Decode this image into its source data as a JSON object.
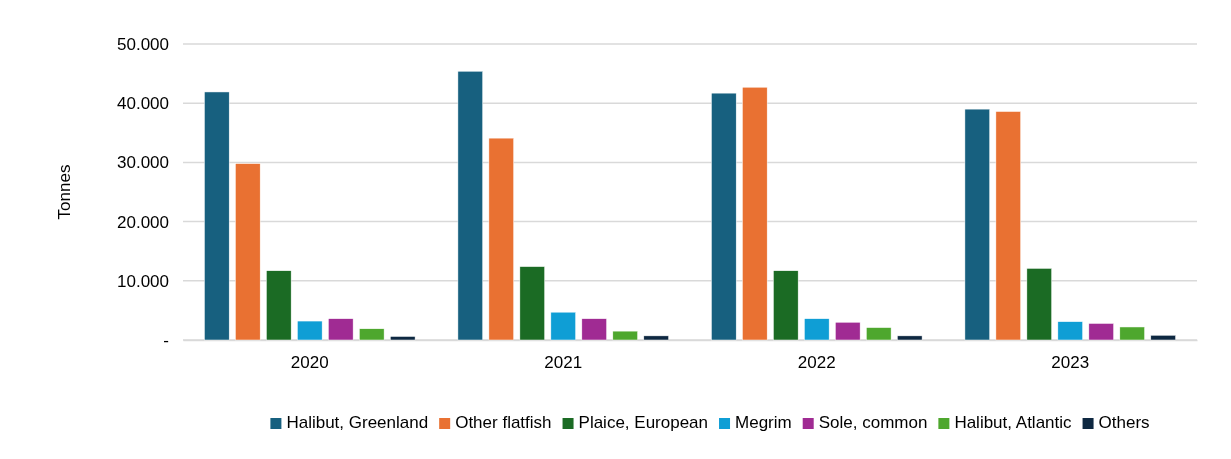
{
  "chart_data": {
    "type": "bar",
    "ylabel": "Tonnes",
    "categories": [
      "2020",
      "2021",
      "2022",
      "2023"
    ],
    "series": [
      {
        "name": "Halibut, Greenland",
        "color": "#17607f",
        "values": [
          41900,
          45400,
          41700,
          39000
        ]
      },
      {
        "name": "Other flatfish",
        "color": "#e97132",
        "values": [
          29800,
          34100,
          42700,
          38600
        ]
      },
      {
        "name": "Plaice, European",
        "color": "#1b6b24",
        "values": [
          11700,
          12400,
          11700,
          12100
        ]
      },
      {
        "name": "Megrim",
        "color": "#0f9ed5",
        "values": [
          3200,
          4700,
          3600,
          3100
        ]
      },
      {
        "name": "Sole, common",
        "color": "#a02b93",
        "values": [
          3600,
          3600,
          3000,
          2800
        ]
      },
      {
        "name": "Halibut, Atlantic",
        "color": "#4ea72e",
        "values": [
          1900,
          1500,
          2100,
          2200
        ]
      },
      {
        "name": "Others",
        "color": "#0e2841",
        "values": [
          600,
          700,
          700,
          800
        ]
      }
    ],
    "ylim": [
      0,
      50000
    ],
    "yticks": [
      {
        "value": 0,
        "label": "-"
      },
      {
        "value": 10000,
        "label": "10.000"
      },
      {
        "value": 20000,
        "label": "20.000"
      },
      {
        "value": 30000,
        "label": "30.000"
      },
      {
        "value": 40000,
        "label": "40.000"
      },
      {
        "value": 50000,
        "label": "50.000"
      }
    ],
    "grid": "y",
    "legend": "bottom"
  }
}
